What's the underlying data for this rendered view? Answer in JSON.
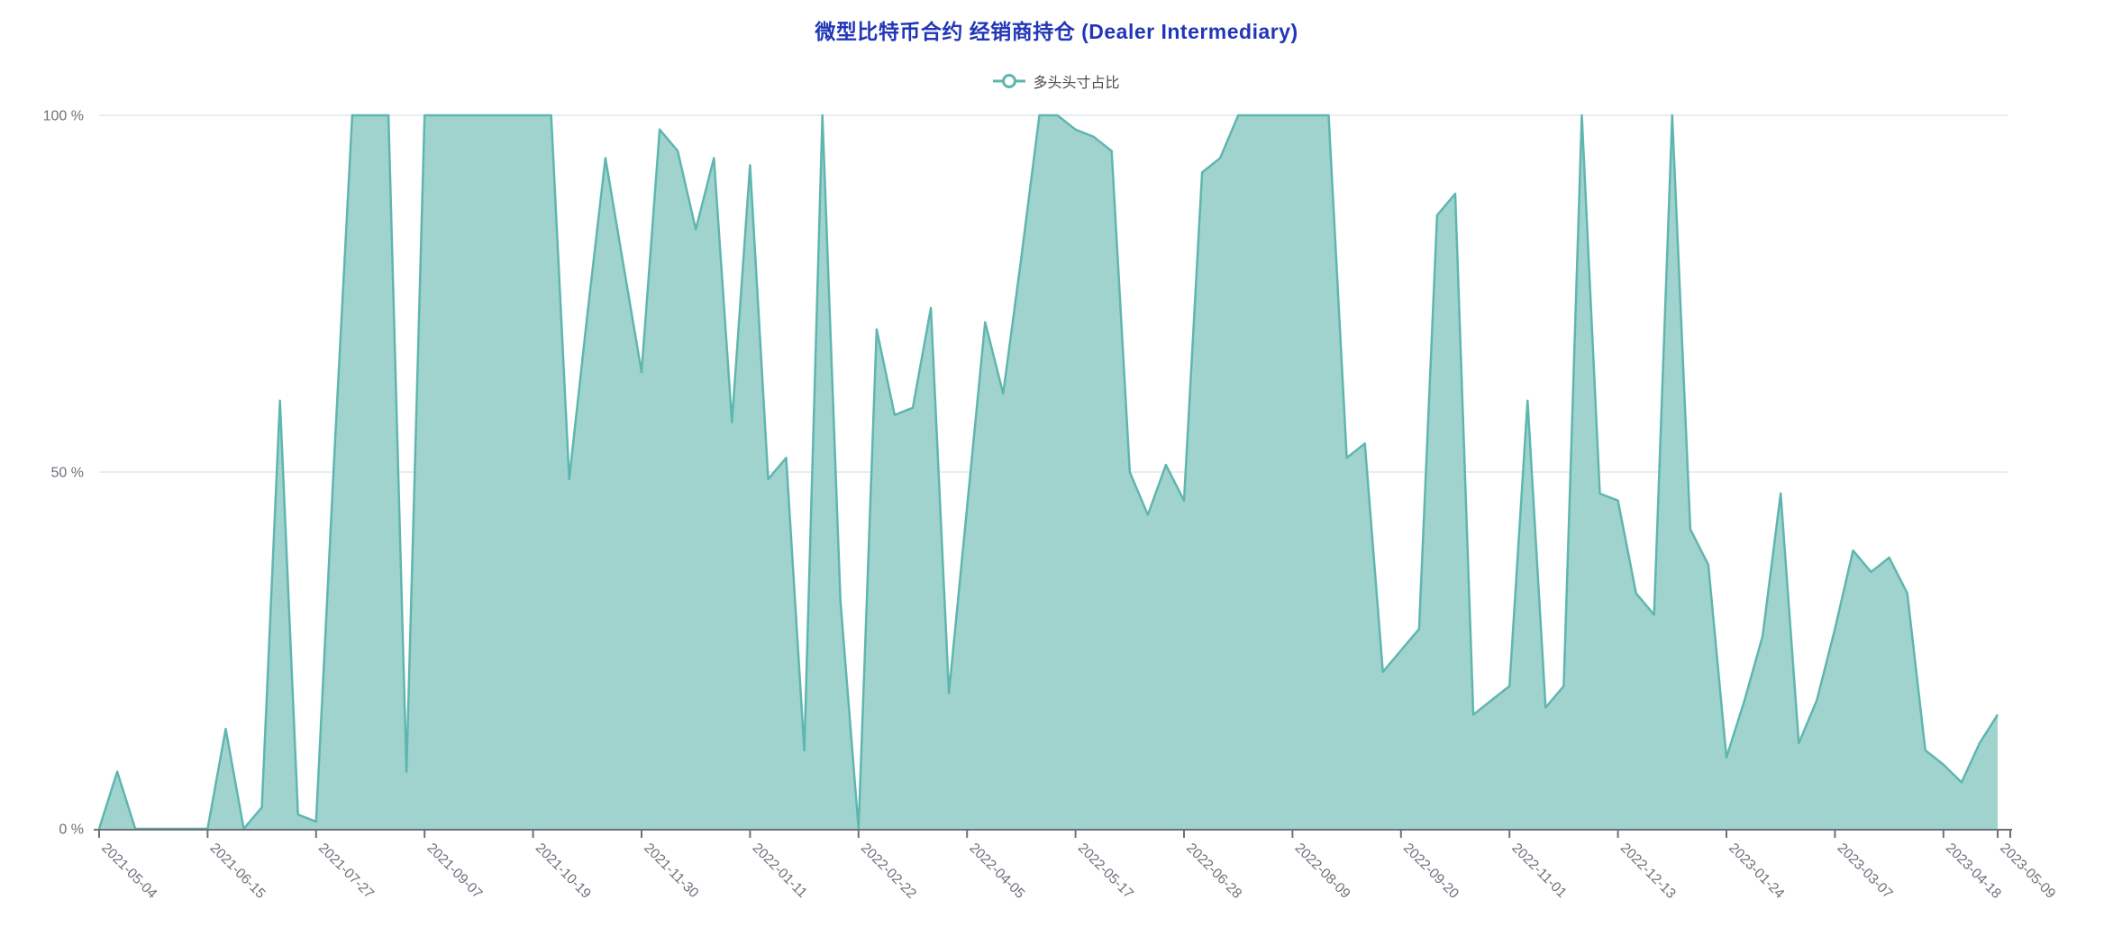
{
  "title": "微型比特币合约 经销商持仓 (Dealer Intermediary)",
  "legend": {
    "label": "多头头寸占比",
    "marker": "line-circle-icon",
    "position": "top-center"
  },
  "colors": {
    "title": "#2237b8",
    "legend_text": "#4c4c4c",
    "series_line": "#5FB6AF",
    "series_fill": "#A1D3CE",
    "axis_line": "#6E7079",
    "axis_label": "#6E7079",
    "gridline": "#E1E5F0",
    "background": "#ffffff"
  },
  "y_axis": {
    "labels": [
      "100 %",
      "50 %",
      "0 %"
    ],
    "values": [
      100,
      50,
      0
    ]
  },
  "x_axis": {
    "tick_label_indices": [
      0,
      6,
      12,
      18,
      24,
      30,
      36,
      42,
      48,
      54,
      60,
      66,
      72,
      78,
      84,
      90,
      96,
      102,
      105
    ],
    "tick_labels": [
      "2021-05-04",
      "2021-06-15",
      "2021-07-27",
      "2021-09-07",
      "2021-10-19",
      "2021-11-30",
      "2022-01-11",
      "2022-02-22",
      "2022-04-05",
      "2022-05-17",
      "2022-06-28",
      "2022-08-09",
      "2022-09-20",
      "2022-11-01",
      "2022-12-13",
      "2023-01-24",
      "2023-03-07",
      "2023-04-18",
      "2023-05-09"
    ],
    "label_rotation_deg": 45
  },
  "chart_data": {
    "type": "area",
    "title": "微型比特币合约 经销商持仓 (Dealer Intermediary)",
    "xlabel": "",
    "ylabel": "",
    "ylim": [
      0,
      100
    ],
    "y_unit": "%",
    "grid": "horizontal-gridlines-at-50-and-100",
    "legend_position": "top-center",
    "x": [
      "2021-05-04",
      "2021-05-11",
      "2021-05-18",
      "2021-05-25",
      "2021-06-01",
      "2021-06-08",
      "2021-06-15",
      "2021-06-22",
      "2021-06-29",
      "2021-07-06",
      "2021-07-13",
      "2021-07-20",
      "2021-07-27",
      "2021-08-03",
      "2021-08-10",
      "2021-08-17",
      "2021-08-24",
      "2021-08-31",
      "2021-09-07",
      "2021-09-14",
      "2021-09-21",
      "2021-09-28",
      "2021-10-05",
      "2021-10-12",
      "2021-10-19",
      "2021-10-26",
      "2021-11-02",
      "2021-11-09",
      "2021-11-16",
      "2021-11-23",
      "2021-11-30",
      "2021-12-07",
      "2021-12-14",
      "2021-12-21",
      "2021-12-28",
      "2022-01-04",
      "2022-01-11",
      "2022-01-18",
      "2022-01-25",
      "2022-02-01",
      "2022-02-08",
      "2022-02-15",
      "2022-02-22",
      "2022-03-01",
      "2022-03-08",
      "2022-03-15",
      "2022-03-22",
      "2022-03-29",
      "2022-04-05",
      "2022-04-12",
      "2022-04-19",
      "2022-04-26",
      "2022-05-03",
      "2022-05-10",
      "2022-05-17",
      "2022-05-24",
      "2022-05-31",
      "2022-06-07",
      "2022-06-14",
      "2022-06-21",
      "2022-06-28",
      "2022-07-05",
      "2022-07-12",
      "2022-07-19",
      "2022-07-26",
      "2022-08-02",
      "2022-08-09",
      "2022-08-16",
      "2022-08-23",
      "2022-08-30",
      "2022-09-06",
      "2022-09-13",
      "2022-09-20",
      "2022-09-27",
      "2022-10-04",
      "2022-10-11",
      "2022-10-18",
      "2022-10-25",
      "2022-11-01",
      "2022-11-08",
      "2022-11-15",
      "2022-11-22",
      "2022-11-29",
      "2022-12-06",
      "2022-12-13",
      "2022-12-20",
      "2022-12-27",
      "2023-01-03",
      "2023-01-10",
      "2023-01-17",
      "2023-01-24",
      "2023-01-31",
      "2023-02-07",
      "2023-02-14",
      "2023-02-21",
      "2023-02-28",
      "2023-03-07",
      "2023-03-14",
      "2023-03-21",
      "2023-03-28",
      "2023-04-04",
      "2023-04-11",
      "2023-04-18",
      "2023-04-25",
      "2023-05-02",
      "2023-05-09"
    ],
    "series": [
      {
        "name": "多头头寸占比",
        "values": [
          0,
          8,
          0,
          0,
          0,
          0,
          0,
          14,
          0,
          3,
          60,
          2,
          1,
          52,
          100,
          100,
          100,
          8,
          100,
          100,
          100,
          100,
          100,
          100,
          100,
          100,
          49,
          72,
          94,
          79,
          64,
          98,
          95,
          84,
          94,
          57,
          93,
          49,
          52,
          11,
          100,
          32,
          0,
          70,
          58,
          59,
          73,
          19,
          45,
          71,
          61,
          80,
          100,
          100,
          98,
          97,
          95,
          50,
          44,
          51,
          46,
          92,
          94,
          100,
          100,
          100,
          100,
          100,
          100,
          52,
          54,
          22,
          25,
          28,
          86,
          89,
          16,
          18,
          20,
          60,
          17,
          20,
          100,
          47,
          46,
          33,
          30,
          100,
          42,
          37,
          10,
          18,
          27,
          47,
          12,
          18,
          28,
          39,
          36,
          38,
          33,
          11,
          9,
          6.5,
          12,
          16
        ]
      }
    ]
  }
}
